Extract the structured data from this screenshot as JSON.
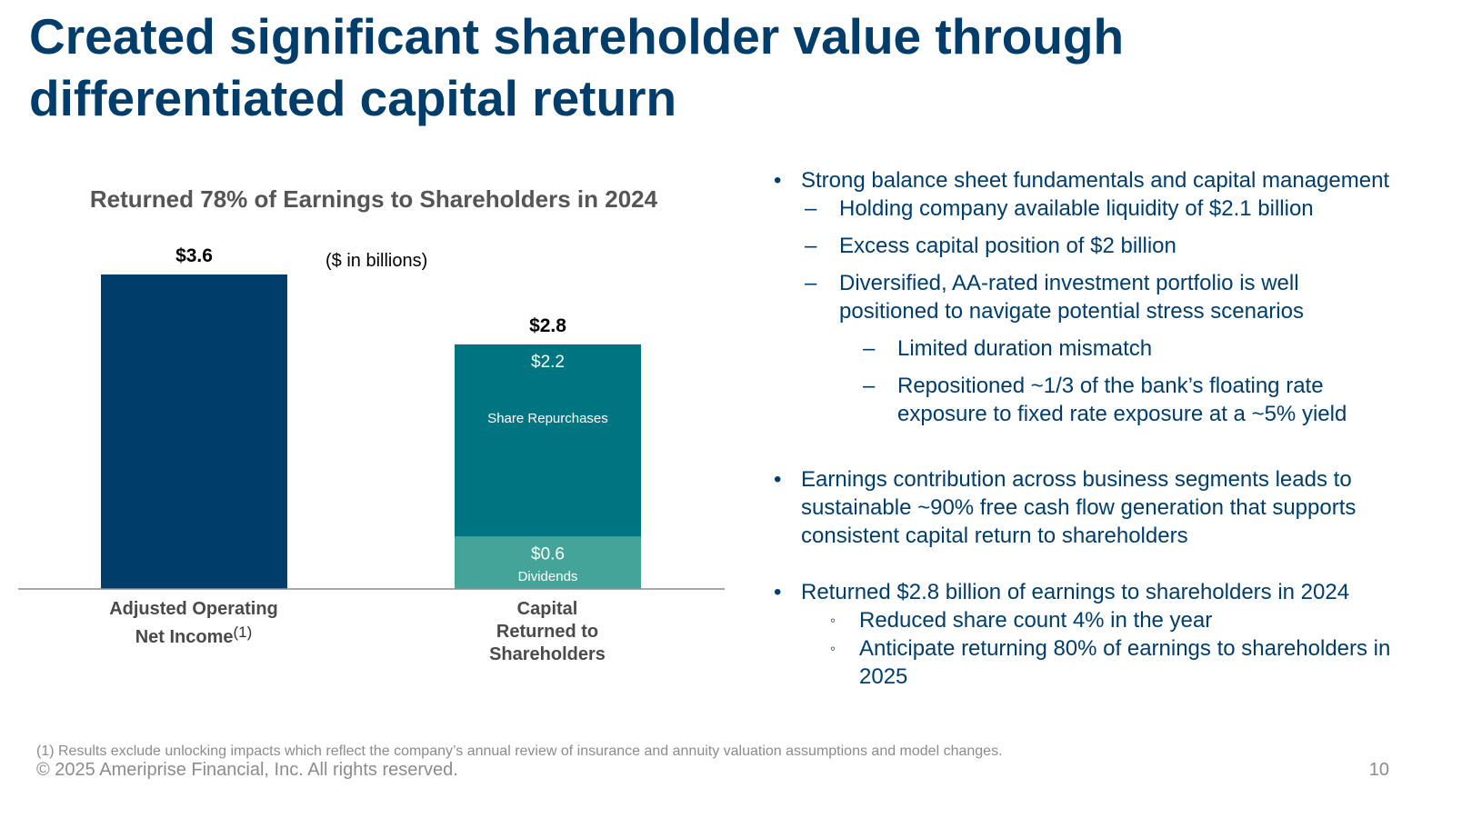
{
  "slide": {
    "title_lines": [
      "Created significant shareholder value through",
      "differentiated capital return"
    ],
    "page_number": "10",
    "footnote": "(1) Results exclude unlocking impacts which reflect the company’s annual review of insurance and annuity valuation assumptions and model changes.",
    "copyright": "© 2025 Ameriprise Financial, Inc. All rights reserved."
  },
  "chart_data": {
    "type": "bar",
    "title": "Returned 78% of Earnings to Shareholders in 2024",
    "units_note": "($ in billions)",
    "categories": [
      "Adjusted Operating Net Income",
      "Capital Returned to Shareholders"
    ],
    "category_lines": [
      [
        "Adjusted Operating",
        "Net Income"
      ],
      [
        "Capital",
        "Returned to",
        "Shareholders"
      ]
    ],
    "category_superscripts": [
      "(1)",
      ""
    ],
    "totals": [
      3.6,
      2.8
    ],
    "total_labels": [
      "$3.6",
      "$2.8"
    ],
    "series": [
      {
        "name": "Adjusted Operating Net Income",
        "values": [
          3.6,
          null
        ],
        "color": "#003d6b"
      },
      {
        "name": "Dividends",
        "values": [
          null,
          0.6
        ],
        "color": "#45a49a",
        "value_label": "$0.6",
        "label_color": "#ffffff"
      },
      {
        "name": "Share Repurchases",
        "values": [
          null,
          2.2
        ],
        "color": "#007582",
        "value_label": "$2.2",
        "label_color": "#ffffff"
      }
    ],
    "stacked": true,
    "grid": false,
    "ylim": [
      0,
      3.6
    ],
    "axis_color": "#8c8c8c"
  },
  "bullets": [
    {
      "level": 1,
      "marker": "•",
      "text": "Strong balance sheet fundamentals and capital management"
    },
    {
      "level": 2,
      "marker": "–",
      "text": "Holding company available liquidity of $2.1 billion"
    },
    {
      "level": 2,
      "marker": "–",
      "text": "Excess capital position of $2 billion"
    },
    {
      "level": 2,
      "marker": "–",
      "text": "Diversified, AA-rated investment portfolio is well positioned to navigate potential stress scenarios"
    },
    {
      "level": 3,
      "marker": "–",
      "text": "Limited duration mismatch"
    },
    {
      "level": 3,
      "marker": "–",
      "text": "Repositioned ~1/3 of the bank’s floating rate exposure to fixed rate exposure at a ~5% yield"
    },
    {
      "level": 1,
      "marker": "•",
      "text": "Earnings contribution across business segments leads to sustainable ~90% free cash flow generation that supports consistent capital return to shareholders"
    },
    {
      "level": 1,
      "marker": "•",
      "text": "Returned $2.8 billion of earnings to shareholders in 2024"
    },
    {
      "level": 4,
      "marker": "◦",
      "text": "Reduced share count 4% in the year"
    },
    {
      "level": 4,
      "marker": "◦",
      "text": "Anticipate returning 80% of earnings to shareholders in 2025"
    }
  ]
}
